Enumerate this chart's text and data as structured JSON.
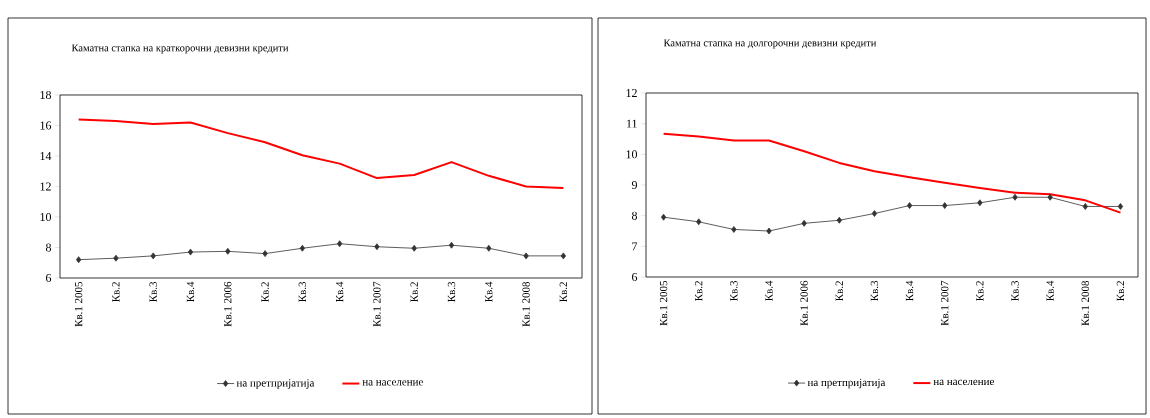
{
  "chart_data": [
    {
      "type": "line",
      "title": "Каматна стапка на краткорочни девизни кредити",
      "categories": [
        "Кв.1 2005",
        "Кв.2",
        "Кв.3",
        "Кв.4",
        "Кв.1 2006",
        "Кв.2",
        "Кв.3",
        "Кв.4",
        "Кв.1 2007",
        "Кв.2",
        "Кв.3",
        "Кв.4",
        "Кв.1 2008",
        "Кв.2"
      ],
      "series": [
        {
          "name": "на претпријатија",
          "color": "#333333",
          "marker": "diamond",
          "values": [
            7.2,
            7.3,
            7.45,
            7.7,
            7.75,
            7.6,
            7.95,
            8.25,
            8.05,
            7.95,
            8.15,
            7.95,
            7.45,
            7.45
          ]
        },
        {
          "name": "на население",
          "color": "#ff0000",
          "marker": "none",
          "values": [
            16.4,
            16.3,
            16.1,
            16.2,
            15.5,
            14.9,
            14.05,
            13.5,
            12.55,
            12.75,
            13.6,
            12.7,
            12.0,
            11.9
          ]
        }
      ],
      "ylim": [
        6,
        18
      ],
      "yticks": [
        6,
        8,
        10,
        12,
        14,
        16,
        18
      ],
      "legend": "bottom"
    },
    {
      "type": "line",
      "title": "Каматна стапка на долгорочни девизни кредити",
      "categories": [
        "Кв.1 2005",
        "Кв.2",
        "Кв.3",
        "Кв.4",
        "Кв.1 2006",
        "Кв.2",
        "Кв.3",
        "Кв.4",
        "Кв.1 2007",
        "Кв.2",
        "Кв.3",
        "Кв.4",
        "Кв.1 2008",
        "Кв.2"
      ],
      "series": [
        {
          "name": "на претпријатија",
          "color": "#333333",
          "marker": "diamond",
          "values": [
            7.95,
            7.8,
            7.55,
            7.5,
            7.75,
            7.85,
            8.07,
            8.33,
            8.33,
            8.42,
            8.6,
            8.6,
            8.3,
            8.3
          ]
        },
        {
          "name": "на население",
          "color": "#ff0000",
          "marker": "none",
          "values": [
            10.67,
            10.58,
            10.45,
            10.45,
            10.1,
            9.72,
            9.45,
            9.25,
            9.07,
            8.9,
            8.75,
            8.7,
            8.5,
            8.1
          ]
        }
      ],
      "ylim": [
        6,
        12
      ],
      "yticks": [
        6,
        7,
        8,
        9,
        10,
        11,
        12
      ],
      "legend": "bottom"
    }
  ]
}
